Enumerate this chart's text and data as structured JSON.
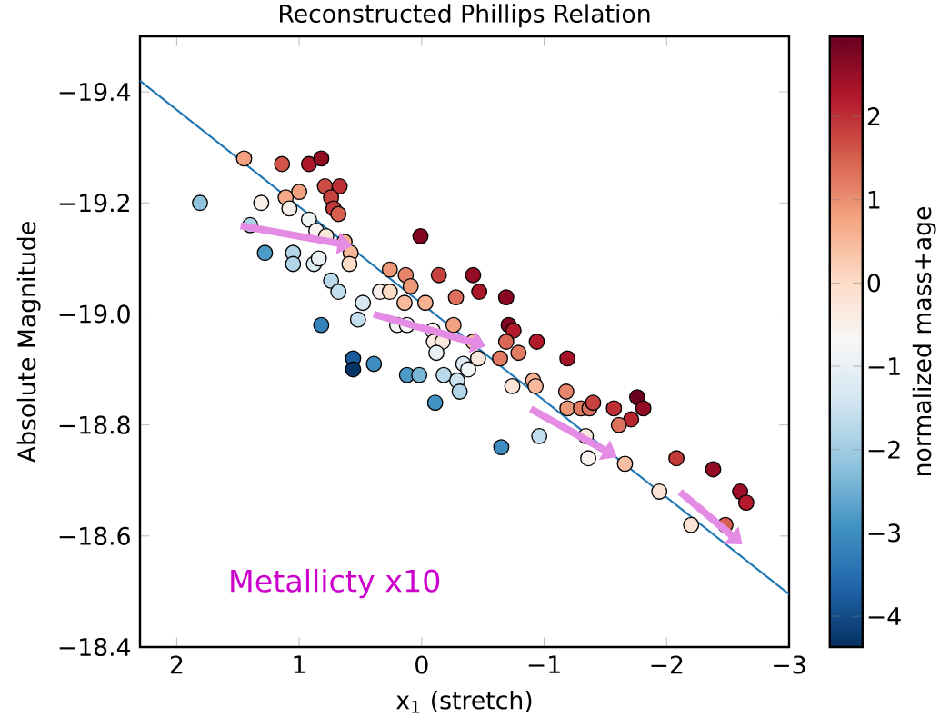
{
  "chart_data": {
    "type": "scatter",
    "title": "Reconstructed Phillips Relation",
    "xlabel": "x$_{1}$ (stretch)",
    "ylabel": "Absolute Magnitude",
    "clabel": "normalized mass+age",
    "xlim": [
      2.3,
      -3
    ],
    "ylim": [
      -18.4,
      -19.5
    ],
    "xticks": [
      2,
      1,
      0,
      {
        "value": -1,
        "label": "−1"
      },
      {
        "value": -2,
        "label": "−2"
      },
      {
        "value": -3,
        "label": "−3"
      }
    ],
    "yticks": [
      {
        "value": -19.4,
        "label": "−19.4"
      },
      {
        "value": -19.2,
        "label": "−19.2"
      },
      {
        "value": -19.0,
        "label": "−19.0"
      },
      {
        "value": -18.8,
        "label": "−18.8"
      },
      {
        "value": -18.6,
        "label": "−18.6"
      },
      {
        "value": -18.4,
        "label": "−18.4"
      }
    ],
    "clim": [
      -4.37,
      2.96
    ],
    "cticks": [
      2,
      1,
      0,
      {
        "value": -1,
        "label": "−1"
      },
      {
        "value": -2,
        "label": "−2"
      },
      {
        "value": -3,
        "label": "−3"
      },
      {
        "value": -4,
        "label": "−4"
      }
    ],
    "annotations": [
      "Metallicty x10"
    ],
    "series": [
      {
        "marker": "circle",
        "x": [
          1.81,
          1.45,
          1.14,
          0.92,
          0.82,
          1.31,
          1.11,
          1.0,
          0.79,
          0.67,
          0.74,
          0.72,
          0.68,
          1.08,
          1.4,
          0.92,
          0.86,
          0.78,
          0.63,
          0.58,
          0.59,
          1.28,
          1.05,
          1.05,
          0.88,
          0.84,
          0.74,
          0.68,
          0.48,
          0.52,
          0.82,
          0.56,
          0.56,
          0.39,
          0.01,
          0.26,
          0.13,
          0.09,
          0.34,
          0.26,
          0.14,
          -0.03,
          0.2,
          0.12,
          0.12,
          0.02,
          -0.11,
          -0.14,
          -0.42,
          -0.47,
          -0.69,
          -0.28,
          -0.09,
          -0.26,
          -0.42,
          -0.71,
          -0.75,
          -0.1,
          -0.17,
          -0.12,
          -0.46,
          -0.64,
          -0.69,
          -0.79,
          -0.94,
          -0.34,
          -0.38,
          -0.18,
          -0.29,
          -0.31,
          -0.74,
          -0.91,
          -0.93,
          -1.19,
          -0.65,
          -0.96,
          -1.18,
          -1.19,
          -1.3,
          -1.37,
          -1.4,
          -1.57,
          -1.76,
          -1.81,
          -1.71,
          -1.61,
          -1.34,
          -1.36,
          -1.66,
          -2.08,
          -2.38,
          -1.94,
          -2.2,
          -2.48,
          -2.6,
          -2.65
        ],
        "values": [
          -19.2,
          -19.28,
          -19.27,
          -19.27,
          -19.28,
          -19.2,
          -19.21,
          -19.22,
          -19.23,
          -19.23,
          -19.21,
          -19.19,
          -19.18,
          -19.19,
          -19.16,
          -19.17,
          -19.15,
          -19.14,
          -19.13,
          -19.11,
          -19.09,
          -19.11,
          -19.11,
          -19.09,
          -19.09,
          -19.1,
          -19.06,
          -19.04,
          -19.02,
          -18.99,
          -18.98,
          -18.92,
          -18.9,
          -18.91,
          -19.14,
          -19.08,
          -19.07,
          -19.05,
          -19.04,
          -19.04,
          -19.02,
          -19.02,
          -18.98,
          -18.98,
          -18.89,
          -18.89,
          -18.84,
          -19.07,
          -19.07,
          -19.04,
          -19.03,
          -19.03,
          -18.97,
          -18.98,
          -18.95,
          -18.98,
          -18.97,
          -18.95,
          -18.95,
          -18.93,
          -18.92,
          -18.92,
          -18.95,
          -18.93,
          -18.95,
          -18.91,
          -18.9,
          -18.89,
          -18.88,
          -18.86,
          -18.87,
          -18.88,
          -18.87,
          -18.92,
          -18.76,
          -18.78,
          -18.86,
          -18.83,
          -18.83,
          -18.83,
          -18.84,
          -18.83,
          -18.85,
          -18.83,
          -18.81,
          -18.8,
          -18.78,
          -18.74,
          -18.73,
          -18.74,
          -18.72,
          -18.68,
          -18.62,
          -18.62,
          -18.68,
          -18.66
        ],
        "colors": [
          "#8fc3dd",
          "#f2a285",
          "#d15648",
          "#ad162a",
          "#9a0c24",
          "#f9efea",
          "#f5a988",
          "#f2a285",
          "#cc4c44",
          "#bd2f35",
          "#c7423f",
          "#c2393a",
          "#d6604d",
          "#f9efea",
          "#a9d1e5",
          "#f2f5f6",
          "#f8f3f0",
          "#fae8dd",
          "#f6b191",
          "#f7b89b",
          "#fddcc8",
          "#4e9ac7",
          "#b2d5e7",
          "#b2d5e7",
          "#ddebf2",
          "#e8f0f4",
          "#bad9ea",
          "#c3deec",
          "#d8e8f1",
          "#c3deec",
          "#3581ba",
          "#1b5a9c",
          "#063263",
          "#3f8dc0",
          "#8d0521",
          "#ee987c",
          "#e6856e",
          "#ee987c",
          "#f9efea",
          "#fddcc8",
          "#f7b89b",
          "#f6b191",
          "#f2f5f6",
          "#f7f7f7",
          "#4e9ac7",
          "#7ab6d6",
          "#4393c3",
          "#c7423f",
          "#9a0c24",
          "#ad162a",
          "#940822",
          "#de705e",
          "#f9efea",
          "#f2a285",
          "#f7b89b",
          "#8d0521",
          "#b31a2c",
          "#faebe3",
          "#fae8dd",
          "#e8f0f4",
          "#fae8dd",
          "#e27a66",
          "#da6756",
          "#e27a66",
          "#b31a2c",
          "#ddebf2",
          "#f2f5f6",
          "#bad9ea",
          "#cce2ef",
          "#b2d5e7",
          "#fbe4d6",
          "#f6b191",
          "#f7b89b",
          "#a71228",
          "#3f8dc0",
          "#c3deec",
          "#e6856e",
          "#ee987c",
          "#e27a66",
          "#de705e",
          "#c7423f",
          "#bd2f35",
          "#6d0220",
          "#9a0c24",
          "#b8242f",
          "#de705e",
          "#fae8dd",
          "#f8f3f0",
          "#f8bfa4",
          "#c2393a",
          "#9a0c24",
          "#fbe4d6",
          "#fbe4d6",
          "#d6604d",
          "#a10f26",
          "#b31a2c"
        ],
        "cvalues": [
          -2.2,
          0.8,
          1.6,
          2.3,
          2.6,
          -0.5,
          0.7,
          0.8,
          1.7,
          2.0,
          1.8,
          1.9,
          1.5,
          -0.5,
          -1.9,
          -0.8,
          -0.6,
          -0.3,
          0.6,
          0.5,
          0,
          -2.8,
          -1.8,
          -1.8,
          -1.2,
          -1.0,
          -1.7,
          -1.6,
          -1.3,
          -1.6,
          -3.2,
          -3.8,
          -4.3,
          -3.0,
          2.8,
          0.9,
          1.1,
          0.9,
          -0.5,
          0,
          0.5,
          0.6,
          -0.8,
          -0.7,
          -2.8,
          -2.4,
          -2.9,
          1.8,
          2.6,
          2.3,
          2.7,
          1.3,
          -0.5,
          0.8,
          0.5,
          2.8,
          2.2,
          -0.4,
          -0.3,
          -1.0,
          -0.3,
          1.2,
          1.4,
          1.2,
          2.2,
          -1.2,
          -0.8,
          -1.7,
          -1.5,
          -1.8,
          -0.2,
          0.6,
          0.5,
          2.4,
          -3.0,
          -1.6,
          1.1,
          0.9,
          1.2,
          1.3,
          1.8,
          2.0,
          2.9,
          2.6,
          2.1,
          1.3,
          -0.3,
          -0.6,
          0.4,
          1.9,
          2.6,
          -0.2,
          -0.2,
          1.5,
          2.5,
          2.2
        ]
      },
      {
        "type": "line",
        "marker": "none",
        "color": "#1f77b4",
        "x": [
          2.3,
          -3
        ],
        "values": [
          -19.42,
          -18.495
        ]
      }
    ]
  }
}
